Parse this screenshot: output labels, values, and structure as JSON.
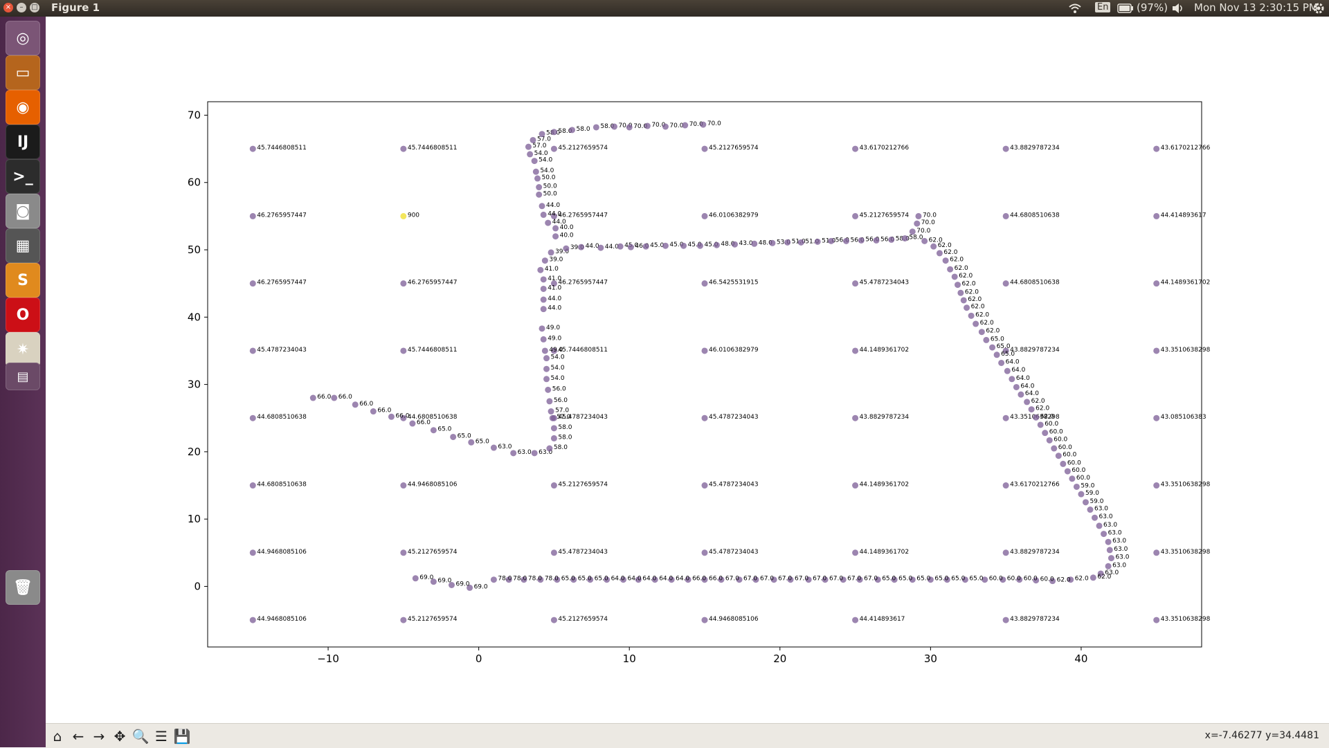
{
  "window": {
    "title": "Figure 1",
    "close_glyph": "×",
    "minimize_glyph": "–",
    "maximize_glyph": "□"
  },
  "top_panel": {
    "language": "En",
    "battery": "(97%)",
    "datetime": "Mon Nov 13  2:30:15 PM",
    "icons": [
      "wifi-icon",
      "battery-icon",
      "volume-icon",
      "gear-icon"
    ]
  },
  "launcher": {
    "items": [
      {
        "name": "ubuntu-dash",
        "glyph": "◎",
        "color": "#7b5576"
      },
      {
        "name": "files",
        "glyph": "▭",
        "color": "#b5651d"
      },
      {
        "name": "firefox",
        "glyph": "◉",
        "color": "#e66000"
      },
      {
        "name": "intellij",
        "glyph": "IJ",
        "color": "#1b1b1b"
      },
      {
        "name": "terminal",
        "glyph": ">_",
        "color": "#2c2c2c"
      },
      {
        "name": "camera",
        "glyph": "◙",
        "color": "#8a8a8a"
      },
      {
        "name": "calculator",
        "glyph": "▦",
        "color": "#555555"
      },
      {
        "name": "sublime",
        "glyph": "S",
        "color": "#e08a1e"
      },
      {
        "name": "opera",
        "glyph": "O",
        "color": "#cc0f16"
      },
      {
        "name": "settings-tool",
        "glyph": "✷",
        "color": "#d9d2c0"
      },
      {
        "name": "workspaces",
        "glyph": "▤",
        "color": "#6b4a67"
      },
      {
        "name": "trash",
        "glyph": "🗑",
        "color": "#8a8a8a"
      }
    ]
  },
  "toolbar": {
    "buttons": [
      {
        "name": "home-button",
        "glyph": "⌂"
      },
      {
        "name": "back-button",
        "glyph": "←"
      },
      {
        "name": "forward-button",
        "glyph": "→"
      },
      {
        "name": "pan-button",
        "glyph": "✥"
      },
      {
        "name": "zoom-button",
        "glyph": "🔍"
      },
      {
        "name": "subplots-button",
        "glyph": "☰"
      },
      {
        "name": "save-button",
        "glyph": "💾"
      }
    ],
    "coords": "x=-7.46277     y=34.4481"
  },
  "colors": {
    "point": "#7b5c96",
    "highlight": "#f2e34b"
  },
  "chart_data": {
    "type": "scatter",
    "title": "",
    "xlabel": "",
    "ylabel": "",
    "xlim": [
      -18,
      48
    ],
    "ylim": [
      -9,
      72
    ],
    "xticks": [
      -10,
      0,
      10,
      20,
      30,
      40
    ],
    "yticks": [
      0,
      10,
      20,
      30,
      40,
      50,
      60,
      70
    ],
    "grid_points": [
      {
        "x": -15,
        "y": 65,
        "label": "45.7446808511"
      },
      {
        "x": -5,
        "y": 65,
        "label": "45.7446808511"
      },
      {
        "x": 5,
        "y": 65,
        "label": "45.2127659574"
      },
      {
        "x": 15,
        "y": 65,
        "label": "45.2127659574"
      },
      {
        "x": 25,
        "y": 65,
        "label": "43.6170212766"
      },
      {
        "x": 35,
        "y": 65,
        "label": "43.8829787234"
      },
      {
        "x": 45,
        "y": 65,
        "label": "43.6170212766"
      },
      {
        "x": -15,
        "y": 55,
        "label": "46.2765957447"
      },
      {
        "x": -5,
        "y": 55,
        "label": "900",
        "highlight": true
      },
      {
        "x": 5,
        "y": 55,
        "label": "46.2765957447"
      },
      {
        "x": 15,
        "y": 55,
        "label": "46.0106382979"
      },
      {
        "x": 25,
        "y": 55,
        "label": "45.2127659574"
      },
      {
        "x": 35,
        "y": 55,
        "label": "44.6808510638"
      },
      {
        "x": 45,
        "y": 55,
        "label": "44.414893617"
      },
      {
        "x": -15,
        "y": 45,
        "label": "46.2765957447"
      },
      {
        "x": -5,
        "y": 45,
        "label": "46.2765957447"
      },
      {
        "x": 5,
        "y": 45,
        "label": "46.2765957447"
      },
      {
        "x": 15,
        "y": 45,
        "label": "46.5425531915"
      },
      {
        "x": 25,
        "y": 45,
        "label": "45.4787234043"
      },
      {
        "x": 35,
        "y": 45,
        "label": "44.6808510638"
      },
      {
        "x": 45,
        "y": 45,
        "label": "44.1489361702"
      },
      {
        "x": -15,
        "y": 35,
        "label": "45.4787234043"
      },
      {
        "x": -5,
        "y": 35,
        "label": "45.7446808511"
      },
      {
        "x": 5,
        "y": 35,
        "label": "45.7446808511"
      },
      {
        "x": 15,
        "y": 35,
        "label": "46.0106382979"
      },
      {
        "x": 25,
        "y": 35,
        "label": "44.1489361702"
      },
      {
        "x": 35,
        "y": 35,
        "label": "43.8829787234"
      },
      {
        "x": 45,
        "y": 35,
        "label": "43.3510638298"
      },
      {
        "x": -15,
        "y": 25,
        "label": "44.6808510638"
      },
      {
        "x": -5,
        "y": 25,
        "label": "44.6808510638"
      },
      {
        "x": 5,
        "y": 25,
        "label": "45.4787234043"
      },
      {
        "x": 15,
        "y": 25,
        "label": "45.4787234043"
      },
      {
        "x": 25,
        "y": 25,
        "label": "43.8829787234"
      },
      {
        "x": 35,
        "y": 25,
        "label": "43.3510638298"
      },
      {
        "x": 45,
        "y": 25,
        "label": "43.085106383"
      },
      {
        "x": -15,
        "y": 15,
        "label": "44.6808510638"
      },
      {
        "x": -5,
        "y": 15,
        "label": "44.9468085106"
      },
      {
        "x": 5,
        "y": 15,
        "label": "45.2127659574"
      },
      {
        "x": 15,
        "y": 15,
        "label": "45.4787234043"
      },
      {
        "x": 25,
        "y": 15,
        "label": "44.1489361702"
      },
      {
        "x": 35,
        "y": 15,
        "label": "43.6170212766"
      },
      {
        "x": 45,
        "y": 15,
        "label": "43.3510638298"
      },
      {
        "x": -15,
        "y": 5,
        "label": "44.9468085106"
      },
      {
        "x": -5,
        "y": 5,
        "label": "45.2127659574"
      },
      {
        "x": 5,
        "y": 5,
        "label": "45.4787234043"
      },
      {
        "x": 15,
        "y": 5,
        "label": "45.4787234043"
      },
      {
        "x": 25,
        "y": 5,
        "label": "44.1489361702"
      },
      {
        "x": 35,
        "y": 5,
        "label": "43.8829787234"
      },
      {
        "x": 45,
        "y": 5,
        "label": "43.3510638298"
      },
      {
        "x": -15,
        "y": -5,
        "label": "44.9468085106"
      },
      {
        "x": -5,
        "y": -5,
        "label": "45.2127659574"
      },
      {
        "x": 5,
        "y": -5,
        "label": "45.2127659574"
      },
      {
        "x": 15,
        "y": -5,
        "label": "44.9468085106"
      },
      {
        "x": 25,
        "y": -5,
        "label": "44.414893617"
      },
      {
        "x": 35,
        "y": -5,
        "label": "43.8829787234"
      },
      {
        "x": 45,
        "y": -5,
        "label": "43.3510638298"
      }
    ],
    "path_points": [
      {
        "x": -11,
        "y": 28,
        "label": "66.0"
      },
      {
        "x": -9.6,
        "y": 28,
        "label": "66.0"
      },
      {
        "x": -8.2,
        "y": 27,
        "label": "66.0"
      },
      {
        "x": -7,
        "y": 26,
        "label": "66.0"
      },
      {
        "x": -5.8,
        "y": 25.2,
        "label": "66.0"
      },
      {
        "x": -4.4,
        "y": 24.2,
        "label": "66.0"
      },
      {
        "x": -3,
        "y": 23.2,
        "label": "65.0"
      },
      {
        "x": -1.7,
        "y": 22.2,
        "label": "65.0"
      },
      {
        "x": -0.5,
        "y": 21.4,
        "label": "65.0"
      },
      {
        "x": 1,
        "y": 20.6,
        "label": "63.0"
      },
      {
        "x": 2.3,
        "y": 19.8,
        "label": "63.0"
      },
      {
        "x": 3.7,
        "y": 19.8,
        "label": "63.0"
      },
      {
        "x": 4.7,
        "y": 20.5,
        "label": "58.0"
      },
      {
        "x": 5,
        "y": 22,
        "label": "58.0"
      },
      {
        "x": 5,
        "y": 23.5,
        "label": "58.0"
      },
      {
        "x": 4.9,
        "y": 25,
        "label": "57.0"
      },
      {
        "x": 4.8,
        "y": 26,
        "label": "57.0"
      },
      {
        "x": 4.7,
        "y": 27.5,
        "label": "56.0"
      },
      {
        "x": 4.6,
        "y": 29.2,
        "label": "56.0"
      },
      {
        "x": 4.5,
        "y": 30.8,
        "label": "54.0"
      },
      {
        "x": 4.5,
        "y": 32.3,
        "label": "54.0"
      },
      {
        "x": 4.5,
        "y": 33.9,
        "label": "54.0"
      },
      {
        "x": 4.4,
        "y": 35,
        "label": "49.0"
      },
      {
        "x": 4.3,
        "y": 36.7,
        "label": "49.0"
      },
      {
        "x": 4.2,
        "y": 38.3,
        "label": "49.0"
      },
      {
        "x": 4.3,
        "y": 41.2,
        "label": "44.0"
      },
      {
        "x": 4.3,
        "y": 42.6,
        "label": "44.0"
      },
      {
        "x": 4.3,
        "y": 44.2,
        "label": "41.0"
      },
      {
        "x": 4.3,
        "y": 45.6,
        "label": "41.0"
      },
      {
        "x": 4.1,
        "y": 47,
        "label": "41.0"
      },
      {
        "x": 4.4,
        "y": 48.4,
        "label": "39.0"
      },
      {
        "x": 4.8,
        "y": 49.6,
        "label": "39.0"
      },
      {
        "x": 5.1,
        "y": 52,
        "label": "40.0"
      },
      {
        "x": 5.1,
        "y": 53.2,
        "label": "40.0"
      },
      {
        "x": 4.6,
        "y": 54,
        "label": "44.0"
      },
      {
        "x": 4.3,
        "y": 55.2,
        "label": "44.0"
      },
      {
        "x": 4.2,
        "y": 56.5,
        "label": "44.0"
      },
      {
        "x": 4,
        "y": 58.2,
        "label": "50.0"
      },
      {
        "x": 4,
        "y": 59.3,
        "label": "50.0"
      },
      {
        "x": 3.9,
        "y": 60.6,
        "label": "50.0"
      },
      {
        "x": 3.8,
        "y": 61.6,
        "label": "54.0"
      },
      {
        "x": 3.7,
        "y": 63.2,
        "label": "54.0"
      },
      {
        "x": 3.4,
        "y": 64.2,
        "label": "54.0"
      },
      {
        "x": 3.3,
        "y": 65.3,
        "label": "57.0"
      },
      {
        "x": 3.6,
        "y": 66.3,
        "label": "57.0"
      },
      {
        "x": 4.2,
        "y": 67.2,
        "label": "58.0"
      },
      {
        "x": 5,
        "y": 67.5,
        "label": "58.0"
      },
      {
        "x": 6.2,
        "y": 67.8,
        "label": "58.0"
      },
      {
        "x": 7.8,
        "y": 68.2,
        "label": "58.0"
      },
      {
        "x": 9,
        "y": 68.3,
        "label": "70.0"
      },
      {
        "x": 10,
        "y": 68.2,
        "label": "70.0"
      },
      {
        "x": 11.2,
        "y": 68.4,
        "label": "70.0"
      },
      {
        "x": 12.4,
        "y": 68.3,
        "label": "70.0"
      },
      {
        "x": 13.7,
        "y": 68.5,
        "label": "70.0"
      },
      {
        "x": 14.9,
        "y": 68.6,
        "label": "70.0"
      },
      {
        "x": 5.8,
        "y": 50.2,
        "label": "39.0"
      },
      {
        "x": 6.8,
        "y": 50.4,
        "label": "44.0"
      },
      {
        "x": 8.1,
        "y": 50.3,
        "label": "44.0"
      },
      {
        "x": 9.4,
        "y": 50.5,
        "label": "45.0"
      },
      {
        "x": 10.1,
        "y": 50.4,
        "label": "46.0"
      },
      {
        "x": 11.1,
        "y": 50.5,
        "label": "45.0"
      },
      {
        "x": 12.4,
        "y": 50.6,
        "label": "45.0"
      },
      {
        "x": 13.6,
        "y": 50.6,
        "label": "45.0"
      },
      {
        "x": 14.7,
        "y": 50.6,
        "label": "45.0"
      },
      {
        "x": 15.8,
        "y": 50.7,
        "label": "48.0"
      },
      {
        "x": 17,
        "y": 50.8,
        "label": "43.0"
      },
      {
        "x": 18.3,
        "y": 50.9,
        "label": "48.0"
      },
      {
        "x": 19.5,
        "y": 51,
        "label": "53.0"
      },
      {
        "x": 20.5,
        "y": 51.1,
        "label": "51.0"
      },
      {
        "x": 21.4,
        "y": 51.1,
        "label": "51.0"
      },
      {
        "x": 22.5,
        "y": 51.2,
        "label": "51.0"
      },
      {
        "x": 23.4,
        "y": 51.3,
        "label": "56.0"
      },
      {
        "x": 24.4,
        "y": 51.3,
        "label": "56.0"
      },
      {
        "x": 25.4,
        "y": 51.4,
        "label": "56.0"
      },
      {
        "x": 26.4,
        "y": 51.4,
        "label": "56.0"
      },
      {
        "x": 27.4,
        "y": 51.5,
        "label": "58.0"
      },
      {
        "x": 28.3,
        "y": 51.7,
        "label": "58.0"
      },
      {
        "x": 28.8,
        "y": 52.7,
        "label": "70.0"
      },
      {
        "x": 29.1,
        "y": 53.9,
        "label": "70.0"
      },
      {
        "x": 29.2,
        "y": 55,
        "label": "70.0"
      },
      {
        "x": 29.6,
        "y": 51.3,
        "label": "62.0"
      },
      {
        "x": 30.2,
        "y": 50.5,
        "label": "62.0"
      },
      {
        "x": 30.6,
        "y": 49.5,
        "label": "62.0"
      },
      {
        "x": 31,
        "y": 48.4,
        "label": "62.0"
      },
      {
        "x": 31.3,
        "y": 47.1,
        "label": "62.0"
      },
      {
        "x": 31.6,
        "y": 46,
        "label": "62.0"
      },
      {
        "x": 31.8,
        "y": 44.8,
        "label": "62.0"
      },
      {
        "x": 32,
        "y": 43.6,
        "label": "62.0"
      },
      {
        "x": 32.2,
        "y": 42.5,
        "label": "62.0"
      },
      {
        "x": 32.4,
        "y": 41.4,
        "label": "62.0"
      },
      {
        "x": 32.7,
        "y": 40.2,
        "label": "62.0"
      },
      {
        "x": 33,
        "y": 39,
        "label": "62.0"
      },
      {
        "x": 33.4,
        "y": 37.8,
        "label": "62.0"
      },
      {
        "x": 33.7,
        "y": 36.6,
        "label": "65.0"
      },
      {
        "x": 34.1,
        "y": 35.5,
        "label": "65.0"
      },
      {
        "x": 34.4,
        "y": 34.4,
        "label": "65.0"
      },
      {
        "x": 34.7,
        "y": 33.2,
        "label": "64.0"
      },
      {
        "x": 35.1,
        "y": 32,
        "label": "64.0"
      },
      {
        "x": 35.4,
        "y": 30.8,
        "label": "64.0"
      },
      {
        "x": 35.7,
        "y": 29.6,
        "label": "64.0"
      },
      {
        "x": 36,
        "y": 28.5,
        "label": "64.0"
      },
      {
        "x": 36.4,
        "y": 27.4,
        "label": "62.0"
      },
      {
        "x": 36.7,
        "y": 26.3,
        "label": "62.0"
      },
      {
        "x": 37,
        "y": 25.1,
        "label": "62.0"
      },
      {
        "x": 37.3,
        "y": 24,
        "label": "60.0"
      },
      {
        "x": 37.6,
        "y": 22.8,
        "label": "60.0"
      },
      {
        "x": 37.9,
        "y": 21.7,
        "label": "60.0"
      },
      {
        "x": 38.2,
        "y": 20.5,
        "label": "60.0"
      },
      {
        "x": 38.5,
        "y": 19.4,
        "label": "60.0"
      },
      {
        "x": 38.8,
        "y": 18.2,
        "label": "60.0"
      },
      {
        "x": 39.1,
        "y": 17.1,
        "label": "60.0"
      },
      {
        "x": 39.4,
        "y": 16,
        "label": "60.0"
      },
      {
        "x": 39.7,
        "y": 14.8,
        "label": "59.0"
      },
      {
        "x": 40,
        "y": 13.7,
        "label": "59.0"
      },
      {
        "x": 40.3,
        "y": 12.5,
        "label": "59.0"
      },
      {
        "x": 40.6,
        "y": 11.4,
        "label": "63.0"
      },
      {
        "x": 40.9,
        "y": 10.2,
        "label": "63.0"
      },
      {
        "x": 41.2,
        "y": 9,
        "label": "63.0"
      },
      {
        "x": 41.5,
        "y": 7.8,
        "label": "63.0"
      },
      {
        "x": 41.8,
        "y": 6.6,
        "label": "63.0"
      },
      {
        "x": 41.9,
        "y": 5.4,
        "label": "63.0"
      },
      {
        "x": 42,
        "y": 4.2,
        "label": "63.0"
      },
      {
        "x": 41.8,
        "y": 3,
        "label": "63.0"
      },
      {
        "x": 41.3,
        "y": 1.9,
        "label": "63.0"
      },
      {
        "x": 40.8,
        "y": 1.3,
        "label": "62.0"
      },
      {
        "x": 39.3,
        "y": 1,
        "label": "62.0"
      },
      {
        "x": 38.1,
        "y": 0.8,
        "label": "62.0"
      },
      {
        "x": 37,
        "y": 0.9,
        "label": "60.0"
      },
      {
        "x": 35.9,
        "y": 1,
        "label": "60.0"
      },
      {
        "x": 34.8,
        "y": 1,
        "label": "60.0"
      },
      {
        "x": 33.6,
        "y": 1,
        "label": "60.0"
      },
      {
        "x": 32.3,
        "y": 1,
        "label": "65.0"
      },
      {
        "x": 31.1,
        "y": 1,
        "label": "65.0"
      },
      {
        "x": 30,
        "y": 1,
        "label": "65.0"
      },
      {
        "x": 28.8,
        "y": 1,
        "label": "65.0"
      },
      {
        "x": 27.6,
        "y": 1,
        "label": "65.0"
      },
      {
        "x": 26.5,
        "y": 1,
        "label": "65.0"
      },
      {
        "x": 25.3,
        "y": 1,
        "label": "67.0"
      },
      {
        "x": 24.2,
        "y": 1,
        "label": "67.0"
      },
      {
        "x": 23,
        "y": 1,
        "label": "67.0"
      },
      {
        "x": 21.9,
        "y": 1,
        "label": "67.0"
      },
      {
        "x": 20.7,
        "y": 1,
        "label": "67.0"
      },
      {
        "x": 19.6,
        "y": 1,
        "label": "67.0"
      },
      {
        "x": 18.4,
        "y": 1,
        "label": "67.0"
      },
      {
        "x": 17.3,
        "y": 1,
        "label": "67.0"
      },
      {
        "x": 16.1,
        "y": 1,
        "label": "67.0"
      },
      {
        "x": 15,
        "y": 1,
        "label": "66.0"
      },
      {
        "x": 13.9,
        "y": 1,
        "label": "66.0"
      },
      {
        "x": 12.8,
        "y": 1,
        "label": "64.0"
      },
      {
        "x": 11.7,
        "y": 1,
        "label": "64.0"
      },
      {
        "x": 10.6,
        "y": 1,
        "label": "64.0"
      },
      {
        "x": 9.6,
        "y": 1,
        "label": "64.0"
      },
      {
        "x": 8.5,
        "y": 1,
        "label": "64.0"
      },
      {
        "x": 7.4,
        "y": 1,
        "label": "65.0"
      },
      {
        "x": 6.3,
        "y": 1,
        "label": "65.0"
      },
      {
        "x": 5.2,
        "y": 1,
        "label": "65.0"
      },
      {
        "x": 4.1,
        "y": 1,
        "label": "78.0"
      },
      {
        "x": 3,
        "y": 1,
        "label": "78.0"
      },
      {
        "x": 2,
        "y": 1,
        "label": "78.0"
      },
      {
        "x": 1,
        "y": 1,
        "label": "78.0"
      },
      {
        "x": -0.6,
        "y": -0.2,
        "label": "69.0"
      },
      {
        "x": -1.8,
        "y": 0.2,
        "label": "69.0"
      },
      {
        "x": -3,
        "y": 0.7,
        "label": "69.0"
      },
      {
        "x": -4.2,
        "y": 1.2,
        "label": "69.0"
      }
    ]
  }
}
